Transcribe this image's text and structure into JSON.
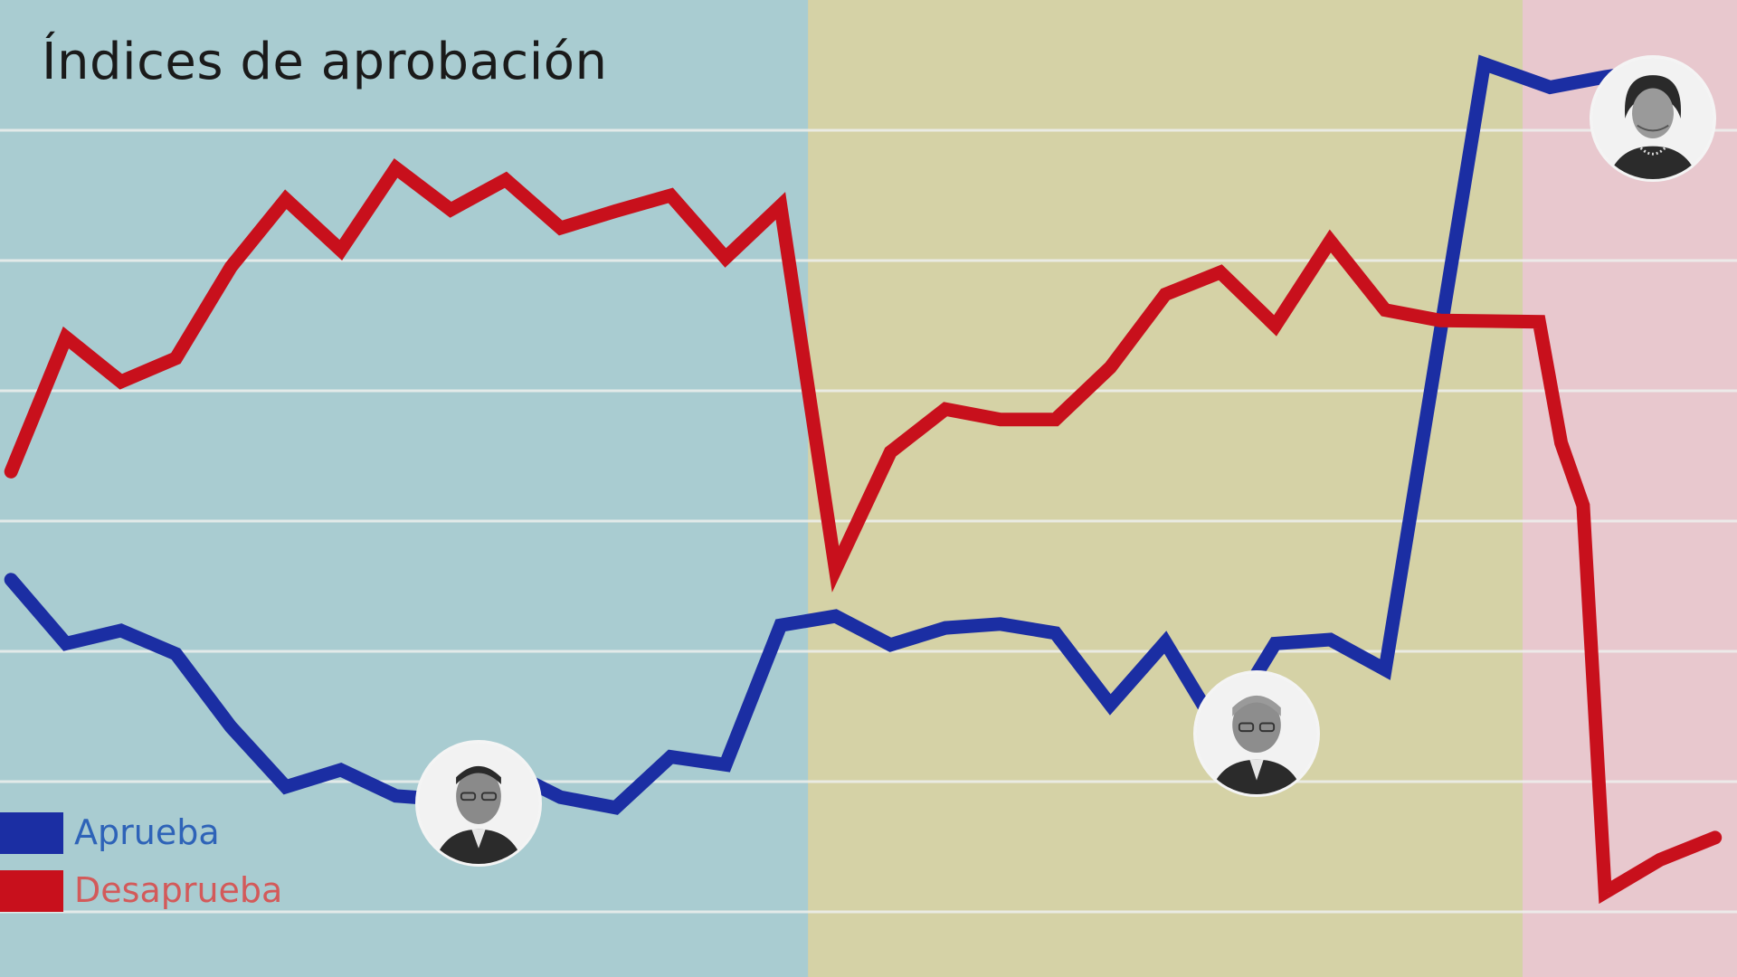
{
  "title": "Índices de aprobación",
  "colors": {
    "approve": "#1b2ea3",
    "disapprove": "#c8101c",
    "period_1": "#a9ccd1",
    "period_2": "#d5d2a6",
    "period_3": "#e8c8ce",
    "grid": "#eef0ee"
  },
  "legend": {
    "approve_label": "Aprueba",
    "disapprove_label": "Desaprueba",
    "approve_text_color": "#2e63b8",
    "disapprove_text_color": "#d35a5a"
  },
  "portraits": [
    {
      "icon": "portrait-icon-period-1"
    },
    {
      "icon": "portrait-icon-period-2"
    },
    {
      "icon": "portrait-icon-period-3"
    }
  ],
  "chart_data": {
    "type": "line",
    "title": "Índices de aprobación",
    "xlabel": "",
    "ylabel": "",
    "grid": true,
    "legend_position": "bottom-left",
    "periods": [
      {
        "start_index": 0,
        "end_index": 14.5
      },
      {
        "start_index": 14.5,
        "end_index": 27.5
      },
      {
        "start_index": 27.5,
        "end_index": 30.5
      }
    ],
    "series": [
      {
        "name": "Aprueba",
        "values": [
          45.5,
          40.6,
          41.6,
          39.8,
          34.2,
          29.6,
          30.9,
          28.9,
          28.6,
          30.9,
          28.8,
          28.0,
          31.9,
          31.3,
          42.0,
          42.7,
          40.5,
          41.8,
          42.1,
          41.4,
          35.9,
          40.7,
          33.7,
          40.6,
          40.9,
          38.6,
          85.1,
          83.3,
          84.1,
          84.7
        ],
        "x": [
          0,
          1,
          2,
          3,
          4,
          5,
          6,
          7,
          8,
          9,
          10,
          11,
          12,
          13,
          14,
          15,
          16,
          17,
          18,
          19,
          20,
          21,
          22,
          23,
          24,
          25,
          26.8,
          28,
          29,
          30
        ]
      },
      {
        "name": "Desaprueba",
        "values": [
          53.8,
          64.1,
          60.7,
          62.5,
          69.5,
          74.7,
          70.8,
          77.1,
          73.9,
          76.2,
          72.5,
          73.8,
          75.0,
          70.2,
          74.2,
          46.3,
          55.3,
          58.6,
          57.8,
          57.8,
          61.8,
          67.4,
          69.1,
          65.0,
          71.5,
          66.2,
          65.4,
          65.3,
          56.0,
          51.2,
          21.5,
          24.0,
          25.7
        ],
        "x": [
          0,
          1,
          2,
          3,
          4,
          5,
          6,
          7,
          8,
          9,
          10,
          11,
          12,
          13,
          14,
          15,
          16,
          17,
          18,
          19,
          20,
          21,
          22,
          23,
          24,
          25,
          26,
          27.8,
          28.2,
          28.6,
          29,
          30,
          31
        ]
      }
    ],
    "ylim": [
      15,
      90
    ],
    "xlim": [
      -0.2,
      31.4
    ]
  }
}
